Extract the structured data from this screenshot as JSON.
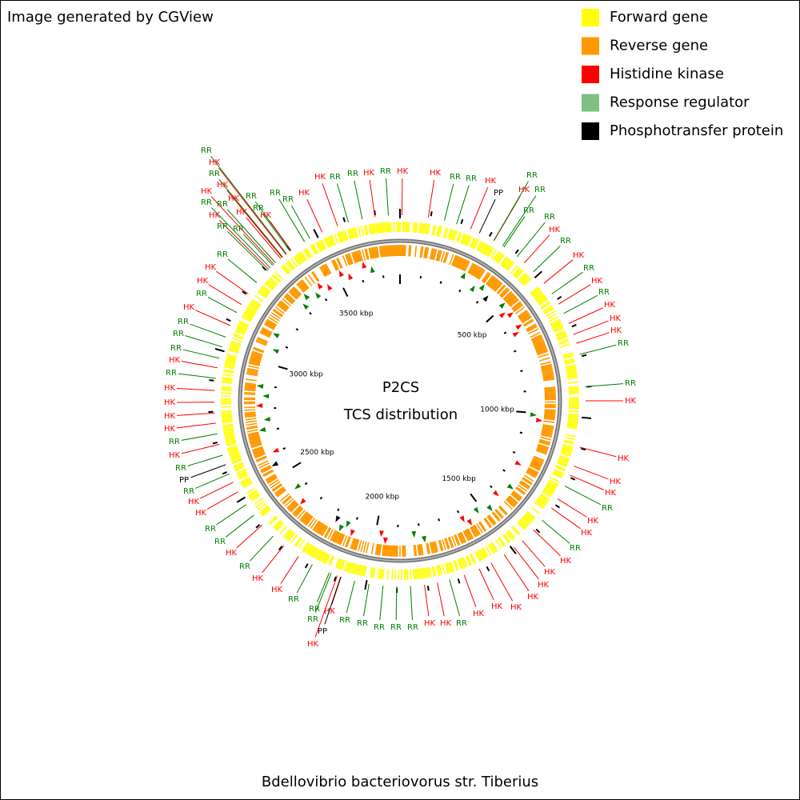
{
  "header": {
    "title": "Image generated by CGView"
  },
  "legend": [
    {
      "label": "Forward gene",
      "color": "#ffff00"
    },
    {
      "label": "Reverse gene",
      "color": "#ff9900"
    },
    {
      "label": "Histidine kinase",
      "color": "#ff0000"
    },
    {
      "label": "Response regulator",
      "color": "#80c080"
    },
    {
      "label": "Phosphotransfer protein",
      "color": "#000000"
    }
  ],
  "center": {
    "title": "P2CS",
    "subtitle": "TCS distribution"
  },
  "tick_labels": [
    "500 kbp",
    "1000 kbp",
    "1500 kbp",
    "2000 kbp",
    "2500 kbp",
    "3000 kbp",
    "3500 kbp"
  ],
  "callouts": [
    {
      "text": "RR",
      "color": "#008000"
    },
    {
      "text": "HK",
      "color": "#ff0000"
    },
    {
      "text": "RR",
      "color": "#008000"
    },
    {
      "text": "HK",
      "color": "#ff0000"
    },
    {
      "text": "HK",
      "color": "#ff0000"
    },
    {
      "text": "RR",
      "color": "#008000"
    },
    {
      "text": "HK",
      "color": "#ff0000"
    },
    {
      "text": "RR",
      "color": "#008000"
    },
    {
      "text": "RR",
      "color": "#008000"
    },
    {
      "text": "HK",
      "color": "#ff0000"
    },
    {
      "text": "HK",
      "color": "#ff0000"
    },
    {
      "text": "RR",
      "color": "#008000"
    },
    {
      "text": "HK",
      "color": "#ff0000"
    },
    {
      "text": "RR",
      "color": "#008000"
    },
    {
      "text": "RR",
      "color": "#008000"
    },
    {
      "text": "RR",
      "color": "#008000"
    },
    {
      "text": "RR",
      "color": "#008000"
    },
    {
      "text": "HK",
      "color": "#ff0000"
    },
    {
      "text": "HK",
      "color": "#ff0000"
    },
    {
      "text": "RR",
      "color": "#008000"
    },
    {
      "text": "RR",
      "color": "#008000"
    },
    {
      "text": "HK",
      "color": "#ff0000"
    },
    {
      "text": "RR",
      "color": "#008000"
    },
    {
      "text": "HK",
      "color": "#ff0000"
    },
    {
      "text": "HK",
      "color": "#ff0000"
    },
    {
      "text": "RR",
      "color": "#008000"
    },
    {
      "text": "RR",
      "color": "#008000"
    },
    {
      "text": "HK",
      "color": "#ff0000"
    },
    {
      "text": "PP",
      "color": "#000000"
    },
    {
      "text": "HK",
      "color": "#ff0000"
    },
    {
      "text": "RR",
      "color": "#008000"
    },
    {
      "text": "RR",
      "color": "#008000"
    },
    {
      "text": "RR",
      "color": "#008000"
    },
    {
      "text": "RR",
      "color": "#008000"
    },
    {
      "text": "HK",
      "color": "#ff0000"
    },
    {
      "text": "RR",
      "color": "#008000"
    },
    {
      "text": "HK",
      "color": "#ff0000"
    },
    {
      "text": "RR",
      "color": "#008000"
    },
    {
      "text": "HK",
      "color": "#ff0000"
    },
    {
      "text": "RR",
      "color": "#008000"
    },
    {
      "text": "HK",
      "color": "#ff0000"
    },
    {
      "text": "HK",
      "color": "#ff0000"
    },
    {
      "text": "HK",
      "color": "#ff0000"
    },
    {
      "text": "RR",
      "color": "#008000"
    },
    {
      "text": "RR",
      "color": "#008000"
    },
    {
      "text": "HK",
      "color": "#ff0000"
    },
    {
      "text": "HK",
      "color": "#ff0000"
    },
    {
      "text": "HK",
      "color": "#ff0000"
    },
    {
      "text": "HK",
      "color": "#ff0000"
    },
    {
      "text": "RR",
      "color": "#008000"
    },
    {
      "text": "HK",
      "color": "#ff0000"
    },
    {
      "text": "HK",
      "color": "#ff0000"
    },
    {
      "text": "RR",
      "color": "#008000"
    },
    {
      "text": "HK",
      "color": "#ff0000"
    },
    {
      "text": "HK",
      "color": "#ff0000"
    },
    {
      "text": "HK",
      "color": "#ff0000"
    },
    {
      "text": "HK",
      "color": "#ff0000"
    },
    {
      "text": "HK",
      "color": "#ff0000"
    },
    {
      "text": "HK",
      "color": "#ff0000"
    },
    {
      "text": "HK",
      "color": "#ff0000"
    },
    {
      "text": "RR",
      "color": "#008000"
    },
    {
      "text": "HK",
      "color": "#ff0000"
    },
    {
      "text": "HK",
      "color": "#ff0000"
    },
    {
      "text": "RR",
      "color": "#008000"
    },
    {
      "text": "RR",
      "color": "#008000"
    },
    {
      "text": "RR",
      "color": "#008000"
    },
    {
      "text": "RR",
      "color": "#008000"
    },
    {
      "text": "RR",
      "color": "#008000"
    },
    {
      "text": "HK",
      "color": "#ff0000"
    },
    {
      "text": "RR",
      "color": "#008000"
    },
    {
      "text": "RR",
      "color": "#008000"
    },
    {
      "text": "PP",
      "color": "#000000"
    },
    {
      "text": "HK",
      "color": "#ff0000"
    },
    {
      "text": "RR",
      "color": "#008000"
    },
    {
      "text": "HK",
      "color": "#ff0000"
    },
    {
      "text": "HK",
      "color": "#ff0000"
    },
    {
      "text": "RR",
      "color": "#008000"
    },
    {
      "text": "HK",
      "color": "#ff0000"
    },
    {
      "text": "RR",
      "color": "#008000"
    },
    {
      "text": "RR",
      "color": "#008000"
    },
    {
      "text": "HK",
      "color": "#ff0000"
    },
    {
      "text": "HK",
      "color": "#ff0000"
    },
    {
      "text": "RR",
      "color": "#008000"
    },
    {
      "text": "PP",
      "color": "#000000"
    },
    {
      "text": "RR",
      "color": "#008000"
    },
    {
      "text": "HK",
      "color": "#ff0000"
    },
    {
      "text": "RR",
      "color": "#008000"
    },
    {
      "text": "HK",
      "color": "#ff0000"
    },
    {
      "text": "HK",
      "color": "#ff0000"
    },
    {
      "text": "HK",
      "color": "#ff0000"
    },
    {
      "text": "HK",
      "color": "#ff0000"
    },
    {
      "text": "RR",
      "color": "#008000"
    },
    {
      "text": "HK",
      "color": "#ff0000"
    },
    {
      "text": "RR",
      "color": "#008000"
    },
    {
      "text": "RR",
      "color": "#008000"
    },
    {
      "text": "RR",
      "color": "#008000"
    },
    {
      "text": "HK",
      "color": "#ff0000"
    },
    {
      "text": "RR",
      "color": "#008000"
    },
    {
      "text": "HK",
      "color": "#ff0000"
    },
    {
      "text": "HK",
      "color": "#ff0000"
    },
    {
      "text": "RR",
      "color": "#008000"
    }
  ],
  "footer": {
    "title": "Bdellovibrio bacteriovorus str. Tiberius"
  }
}
